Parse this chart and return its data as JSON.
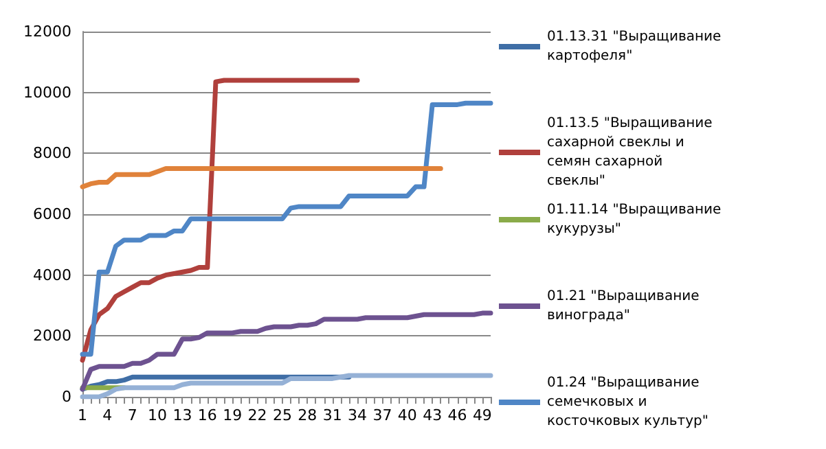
{
  "chart_data": {
    "type": "line",
    "categories": [
      "1",
      null,
      null,
      "4",
      null,
      null,
      "7",
      null,
      null,
      "10",
      null,
      null,
      "13",
      null,
      null,
      "16",
      null,
      null,
      "19",
      null,
      null,
      "22",
      null,
      null,
      "25",
      null,
      null,
      "28",
      null,
      null,
      "31",
      null,
      null,
      "34",
      null,
      null,
      "37",
      null,
      null,
      "40",
      null,
      null,
      "43",
      null,
      null,
      "46",
      null,
      null,
      "49",
      null
    ],
    "ylim": [
      0,
      12000
    ],
    "yticks": [
      0,
      2000,
      4000,
      6000,
      8000,
      10000,
      12000
    ],
    "grid": "y",
    "legend": "right",
    "marker": "none",
    "line_style": "solid",
    "series": [
      {
        "name": "01.13.31 \"Выращивание картофеля\"",
        "color": "#3f6ea6",
        "values": [
          250,
          350,
          400,
          500,
          500,
          550,
          650,
          650,
          650,
          650,
          650,
          650,
          650,
          650,
          650,
          650,
          650,
          650,
          650,
          650,
          650,
          650,
          650,
          650,
          650,
          650,
          650,
          650,
          650,
          650,
          650,
          650,
          650,
          null,
          null,
          null,
          null,
          null,
          null,
          null,
          null,
          null,
          null,
          null,
          null,
          null,
          null,
          null,
          null,
          null
        ]
      },
      {
        "name": "01.13.5 \"Выращивание сахарной свеклы и семян сахарной свеклы\"",
        "color": "#b0403c",
        "values": [
          1200,
          2200,
          2700,
          2900,
          3300,
          3450,
          3600,
          3750,
          3750,
          3900,
          4000,
          4050,
          4100,
          4150,
          4250,
          4250,
          10350,
          10400,
          10400,
          10400,
          10400,
          10400,
          10400,
          10400,
          10400,
          10400,
          10400,
          10400,
          10400,
          10400,
          10400,
          10400,
          10400,
          10400,
          null,
          null,
          null,
          null,
          null,
          null,
          null,
          null,
          null,
          null,
          null,
          null,
          null,
          null,
          null,
          null
        ]
      },
      {
        "name": "01.11.14 \"Выращивание кукурузы\"",
        "color": "#8aab4a",
        "values": [
          300,
          300,
          300,
          300,
          300,
          300,
          null,
          null,
          null,
          null,
          null,
          null,
          null,
          null,
          null,
          null,
          null,
          null,
          null,
          null,
          null,
          null,
          null,
          null,
          null,
          null,
          null,
          null,
          null,
          null,
          null,
          null,
          null,
          null,
          null,
          null,
          null,
          null,
          null,
          null,
          null,
          null,
          null,
          null,
          null,
          null,
          null,
          null,
          null,
          null
        ]
      },
      {
        "name": "01.21 \"Выращивание винограда\"",
        "color": "#6d5290",
        "values": [
          250,
          900,
          1000,
          1000,
          1000,
          1000,
          1100,
          1100,
          1200,
          1400,
          1400,
          1400,
          1900,
          1900,
          1950,
          2100,
          2100,
          2100,
          2100,
          2150,
          2150,
          2150,
          2250,
          2300,
          2300,
          2300,
          2350,
          2350,
          2400,
          2550,
          2550,
          2550,
          2550,
          2550,
          2600,
          2600,
          2600,
          2600,
          2600,
          2600,
          2650,
          2700,
          2700,
          2700,
          2700,
          2700,
          2700,
          2700,
          2750,
          2750
        ]
      },
      {
        "name": "01.24 \"Выращивание семечковых и косточковых культур\"",
        "color": "#4f86c6",
        "values": [
          1400,
          1400,
          4100,
          4100,
          4950,
          5150,
          5150,
          5150,
          5300,
          5300,
          5300,
          5450,
          5450,
          5850,
          5850,
          5850,
          5850,
          5850,
          5850,
          5850,
          5850,
          5850,
          5850,
          5850,
          5850,
          6200,
          6250,
          6250,
          6250,
          6250,
          6250,
          6250,
          6600,
          6600,
          6600,
          6600,
          6600,
          6600,
          6600,
          6600,
          6900,
          6900,
          9600,
          9600,
          9600,
          9600,
          9650,
          9650,
          9650,
          9650
        ]
      },
      {
        "color": "#e0823a",
        "values": [
          6900,
          7000,
          7050,
          7050,
          7300,
          7300,
          7300,
          7300,
          7300,
          7400,
          7500,
          7500,
          7500,
          7500,
          7500,
          7500,
          7500,
          7500,
          7500,
          7500,
          7500,
          7500,
          7500,
          7500,
          7500,
          7500,
          7500,
          7500,
          7500,
          7500,
          7500,
          7500,
          7500,
          7500,
          7500,
          7500,
          7500,
          7500,
          7500,
          7500,
          7500,
          7500,
          7500,
          7500,
          null,
          null,
          null,
          null,
          null,
          null
        ]
      },
      {
        "color": "#95b1d6",
        "values": [
          0,
          0,
          0,
          100,
          250,
          300,
          300,
          300,
          300,
          300,
          300,
          300,
          400,
          450,
          450,
          450,
          450,
          450,
          450,
          450,
          450,
          450,
          450,
          450,
          450,
          600,
          600,
          600,
          600,
          600,
          600,
          650,
          700,
          700,
          700,
          700,
          700,
          700,
          700,
          700,
          700,
          700,
          700,
          700,
          700,
          700,
          700,
          700,
          700,
          700
        ]
      }
    ]
  }
}
